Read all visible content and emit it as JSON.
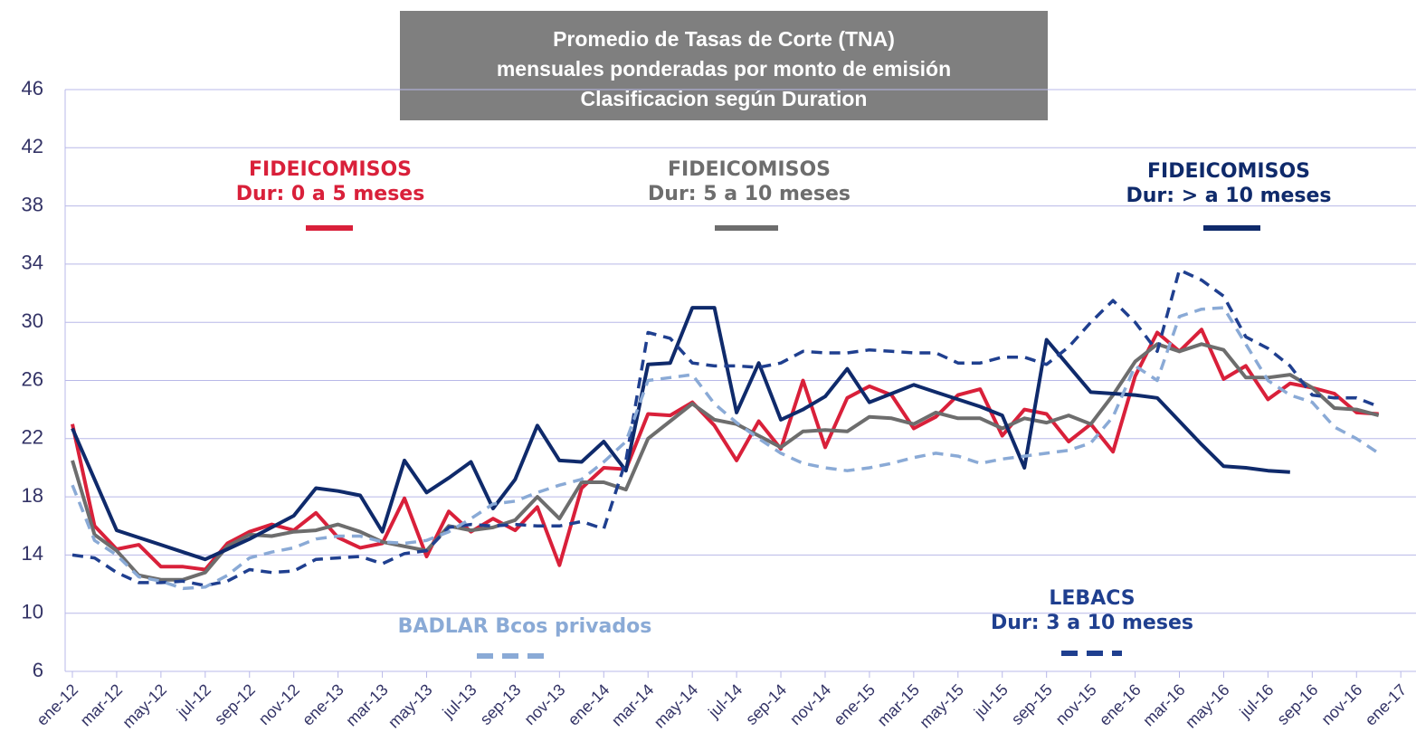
{
  "chart_data": {
    "type": "line",
    "title": [
      "Promedio de Tasas de Corte (TNA)",
      "mensuales ponderadas por monto de emisión",
      "Clasificacion según Duration"
    ],
    "categories": [
      "ene-12",
      null,
      "mar-12",
      null,
      "may-12",
      null,
      "jul-12",
      null,
      "sep-12",
      null,
      "nov-12",
      null,
      "ene-13",
      null,
      "mar-13",
      null,
      "may-13",
      null,
      "jul-13",
      null,
      "sep-13",
      null,
      "nov-13",
      null,
      "ene-14",
      null,
      "mar-14",
      null,
      "may-14",
      null,
      "jul-14",
      null,
      "sep-14",
      null,
      "nov-14",
      null,
      "ene-15",
      null,
      "mar-15",
      null,
      "may-15",
      null,
      "jul-15",
      null,
      "sep-15",
      null,
      "nov-15",
      null,
      "ene-16",
      null,
      "mar-16",
      null,
      "may-16",
      null,
      "jul-16",
      null,
      "sep-16",
      null,
      "nov-16",
      null,
      "ene-17"
    ],
    "ylim": [
      6,
      46
    ],
    "yticks": [
      6,
      10,
      14,
      18,
      22,
      26,
      30,
      34,
      38,
      42,
      46
    ],
    "grid": true,
    "series": [
      {
        "name": [
          "FIDEICOMISOS",
          "Dur: 0 a 5 meses"
        ],
        "color": "#d9203a",
        "dashed": false,
        "values": [
          23.0,
          16.0,
          14.4,
          14.7,
          13.2,
          13.2,
          13.0,
          14.8,
          15.6,
          16.1,
          15.7,
          16.9,
          15.2,
          14.5,
          14.8,
          17.9,
          13.9,
          17.0,
          15.6,
          16.5,
          15.7,
          17.3,
          13.3,
          18.6,
          20.0,
          19.9,
          23.7,
          23.6,
          24.5,
          22.9,
          20.5,
          23.2,
          21.3,
          26.0,
          21.4,
          24.8,
          25.6,
          25.0,
          22.7,
          23.5,
          25.0,
          25.4,
          22.2,
          24.0,
          23.7,
          21.8,
          23.0,
          21.1,
          26.3,
          29.3,
          28.0,
          29.5,
          26.1,
          27.0,
          24.7,
          25.8,
          25.5,
          25.1,
          23.8,
          23.7,
          null
        ]
      },
      {
        "name": [
          "FIDEICOMISOS",
          "Dur: 5 a 10 meses"
        ],
        "color": "#6d6d6d",
        "dashed": false,
        "values": [
          20.5,
          15.4,
          14.3,
          12.6,
          12.3,
          12.3,
          12.8,
          14.6,
          15.4,
          15.3,
          15.6,
          15.7,
          16.1,
          15.6,
          14.9,
          14.6,
          14.3,
          16.0,
          15.7,
          15.9,
          16.4,
          18.0,
          16.5,
          19.0,
          19.0,
          18.5,
          22.0,
          23.2,
          24.4,
          23.3,
          23.0,
          22.2,
          21.4,
          22.5,
          22.6,
          22.5,
          23.5,
          23.4,
          23.0,
          23.8,
          23.4,
          23.4,
          22.7,
          23.4,
          23.1,
          23.6,
          23.0,
          25.0,
          27.3,
          28.5,
          28.0,
          28.5,
          28.1,
          26.2,
          26.2,
          26.4,
          25.5,
          24.1,
          24.0,
          23.6,
          null
        ]
      },
      {
        "name": [
          "FIDEICOMISOS",
          "Dur: > a 10 meses"
        ],
        "color": "#0f2a6b",
        "dashed": false,
        "values": [
          22.7,
          19.2,
          15.7,
          15.2,
          14.7,
          14.2,
          13.7,
          14.4,
          15.1,
          15.9,
          16.7,
          18.6,
          18.4,
          18.1,
          15.6,
          20.5,
          18.3,
          19.3,
          20.4,
          17.2,
          19.2,
          22.9,
          20.5,
          20.4,
          21.8,
          19.8,
          27.1,
          27.2,
          31.0,
          31.0,
          23.8,
          27.2,
          23.3,
          24.0,
          24.9,
          26.8,
          24.5,
          25.1,
          25.7,
          25.2,
          24.7,
          24.2,
          23.6,
          20.0,
          28.8,
          27.0,
          25.2,
          25.1,
          25.0,
          24.8,
          23.2,
          21.6,
          20.1,
          20.0,
          19.8,
          19.7,
          null,
          null,
          null,
          null,
          null
        ]
      },
      {
        "name": [
          "LEBACS",
          "Dur: 3 a 10 meses"
        ],
        "color": "#1f3f8f",
        "dashed": true,
        "values": [
          14.0,
          13.8,
          12.8,
          12.1,
          12.1,
          12.2,
          11.9,
          12.2,
          13.0,
          12.8,
          12.9,
          13.7,
          13.8,
          13.9,
          13.4,
          14.1,
          14.3,
          15.9,
          16.1,
          16.0,
          16.1,
          16.0,
          16.0,
          16.3,
          15.8,
          20.5,
          29.3,
          28.9,
          27.2,
          27.0,
          27.0,
          26.9,
          27.2,
          28.0,
          27.9,
          27.9,
          28.1,
          28.0,
          27.9,
          27.9,
          27.2,
          27.2,
          27.6,
          27.6,
          27.1,
          28.3,
          30.0,
          31.5,
          30.0,
          28.0,
          33.6,
          32.9,
          31.8,
          29.0,
          28.2,
          27.0,
          25.0,
          24.8,
          24.8,
          24.2,
          null
        ]
      },
      {
        "name": [
          "BADLAR Bcos privados"
        ],
        "color": "#8aaad6",
        "dashed": true,
        "values": [
          18.8,
          15.0,
          14.0,
          12.5,
          12.2,
          11.7,
          11.8,
          12.6,
          13.8,
          14.2,
          14.5,
          15.1,
          15.3,
          15.3,
          14.9,
          14.8,
          15.0,
          15.6,
          16.5,
          17.5,
          17.7,
          18.3,
          18.8,
          19.2,
          20.4,
          21.8,
          26.0,
          26.2,
          26.4,
          24.4,
          23.1,
          22.0,
          21.0,
          20.3,
          20.0,
          19.8,
          20.0,
          20.3,
          20.7,
          21.0,
          20.8,
          20.3,
          20.6,
          20.8,
          21.0,
          21.2,
          21.7,
          23.5,
          27.0,
          26.0,
          30.4,
          30.9,
          31.0,
          28.5,
          26.0,
          25.0,
          24.5,
          22.8,
          22.0,
          21.0,
          null
        ]
      }
    ]
  }
}
